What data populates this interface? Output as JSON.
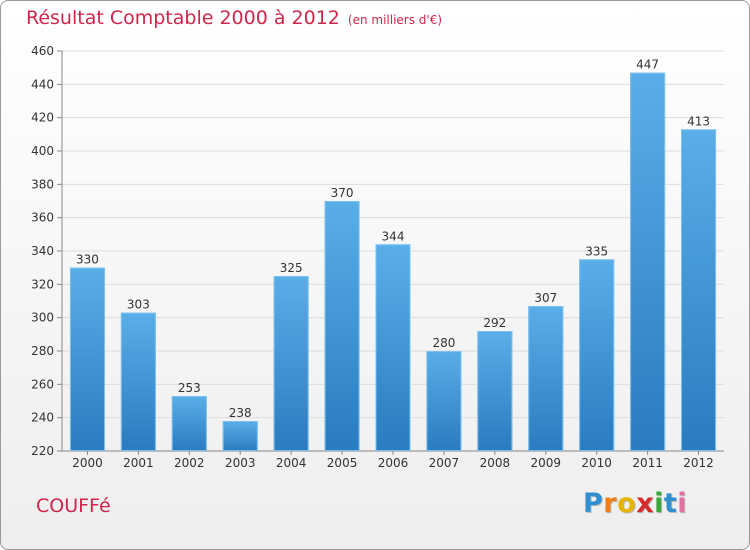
{
  "chart_data": {
    "type": "bar",
    "title": "Résultat Comptable 2000 à 2012",
    "subtitle": "(en milliers d'€)",
    "categories": [
      "2000",
      "2001",
      "2002",
      "2003",
      "2004",
      "2005",
      "2006",
      "2007",
      "2008",
      "2009",
      "2010",
      "2011",
      "2012"
    ],
    "values": [
      330,
      303,
      253,
      238,
      325,
      370,
      344,
      280,
      292,
      307,
      335,
      447,
      413
    ],
    "ylim": [
      220,
      460
    ],
    "yticks": [
      220,
      240,
      260,
      280,
      300,
      320,
      340,
      360,
      380,
      400,
      420,
      440,
      460
    ],
    "xlabel": "",
    "ylabel": "",
    "grid": true
  },
  "footer": {
    "commune": "COUFFé"
  },
  "logo": {
    "letters": [
      "P",
      "r",
      "o",
      "x",
      "i",
      "t",
      "i"
    ],
    "colors": [
      "#2f8fd0",
      "#f07f1a",
      "#e8b400",
      "#d82a2a",
      "#3aa63a",
      "#2f8fd0",
      "#e070a0"
    ]
  },
  "colors": {
    "title": "#d0264b",
    "bar_top": "#5aaee8",
    "bar_bottom": "#2a7bbf"
  }
}
